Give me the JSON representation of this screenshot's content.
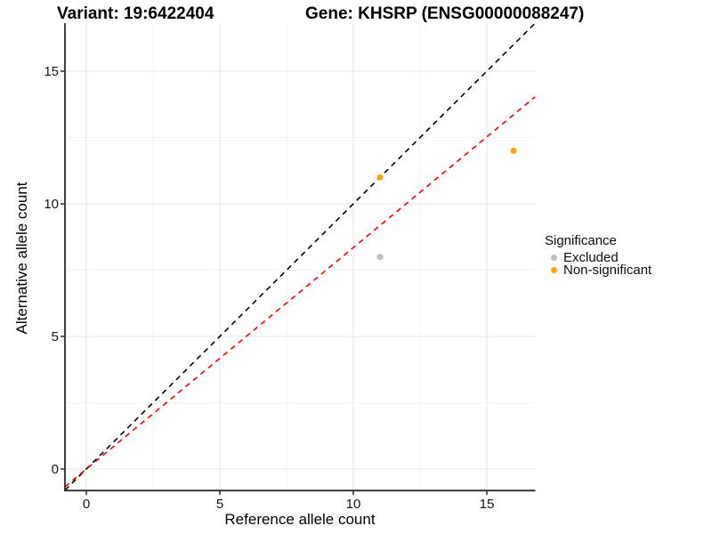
{
  "titles": {
    "variant": "Variant: 19:6422404",
    "gene": "Gene: KHSRP (ENSG00000088247)"
  },
  "chart_data": {
    "type": "scatter",
    "xlabel": "Reference allele count",
    "ylabel": "Alternative allele count",
    "xlim": [
      -0.8,
      16.8
    ],
    "ylim": [
      -0.8,
      16.8
    ],
    "x_ticks": [
      0,
      5,
      10,
      15
    ],
    "y_ticks": [
      0,
      5,
      10,
      15
    ],
    "minor_ticks": [
      2.5,
      7.5,
      12.5
    ],
    "grid": true,
    "points": [
      {
        "x": 11,
        "y": 11,
        "series": "Non-significant"
      },
      {
        "x": 11,
        "y": 8,
        "series": "Excluded"
      },
      {
        "x": 16,
        "y": 12,
        "series": "Non-significant"
      }
    ],
    "lines": [
      {
        "name": "identity",
        "slope": 1,
        "intercept": 0,
        "color": "#000000",
        "style": "dashed"
      },
      {
        "name": "fitted-ratio",
        "slope": 0.835,
        "intercept": 0,
        "color": "#FF0000",
        "style": "dashed"
      }
    ],
    "legend": {
      "title": "Significance",
      "position": "right",
      "entries": [
        {
          "label": "Excluded",
          "color": "#BEBEBE"
        },
        {
          "label": "Non-significant",
          "color": "#FFA500"
        }
      ]
    },
    "colors": {
      "background": "#FFFFFF",
      "grid_major": "#E7E7E7",
      "grid_minor": "#F3F3F3",
      "axis_line": "#2B2B2B",
      "tick_label": "#141414"
    }
  }
}
